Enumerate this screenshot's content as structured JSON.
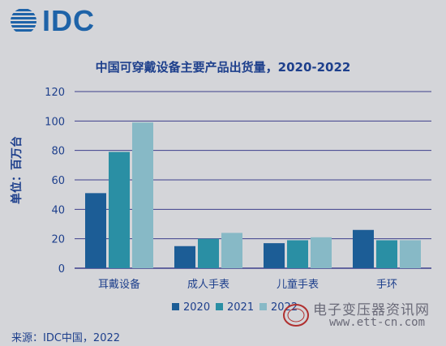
{
  "brand": {
    "logo_text": "IDC"
  },
  "title": "中国可穿戴设备主要产品出货量，2020-2022",
  "ylabel": "单位：百万台",
  "source": "来源：IDC中国，2022",
  "watermark": {
    "line1": "电子变压器资讯网",
    "line2": "www.ett-cn.com"
  },
  "colors": {
    "s2020": "#1c5d96",
    "s2021": "#2a8fa4",
    "s2022": "#87b9c6",
    "axis": "#3d3f8c",
    "text": "#1d3f8c"
  },
  "chart_data": {
    "type": "bar",
    "title": "中国可穿戴设备主要产品出货量，2020-2022",
    "ylabel": "单位：百万台",
    "xlabel": "",
    "categories": [
      "耳戴设备",
      "成人手表",
      "儿童手表",
      "手环"
    ],
    "series": [
      {
        "name": "2020",
        "values": [
          51,
          15,
          17,
          26
        ]
      },
      {
        "name": "2021",
        "values": [
          79,
          20,
          19,
          19
        ]
      },
      {
        "name": "2022",
        "values": [
          99,
          24,
          21,
          19
        ]
      }
    ],
    "ylim": [
      0,
      120
    ],
    "yticks": [
      "0",
      "20",
      "40",
      "60",
      "80",
      "100",
      "120"
    ],
    "grid": true,
    "legend": "bottom-right"
  }
}
